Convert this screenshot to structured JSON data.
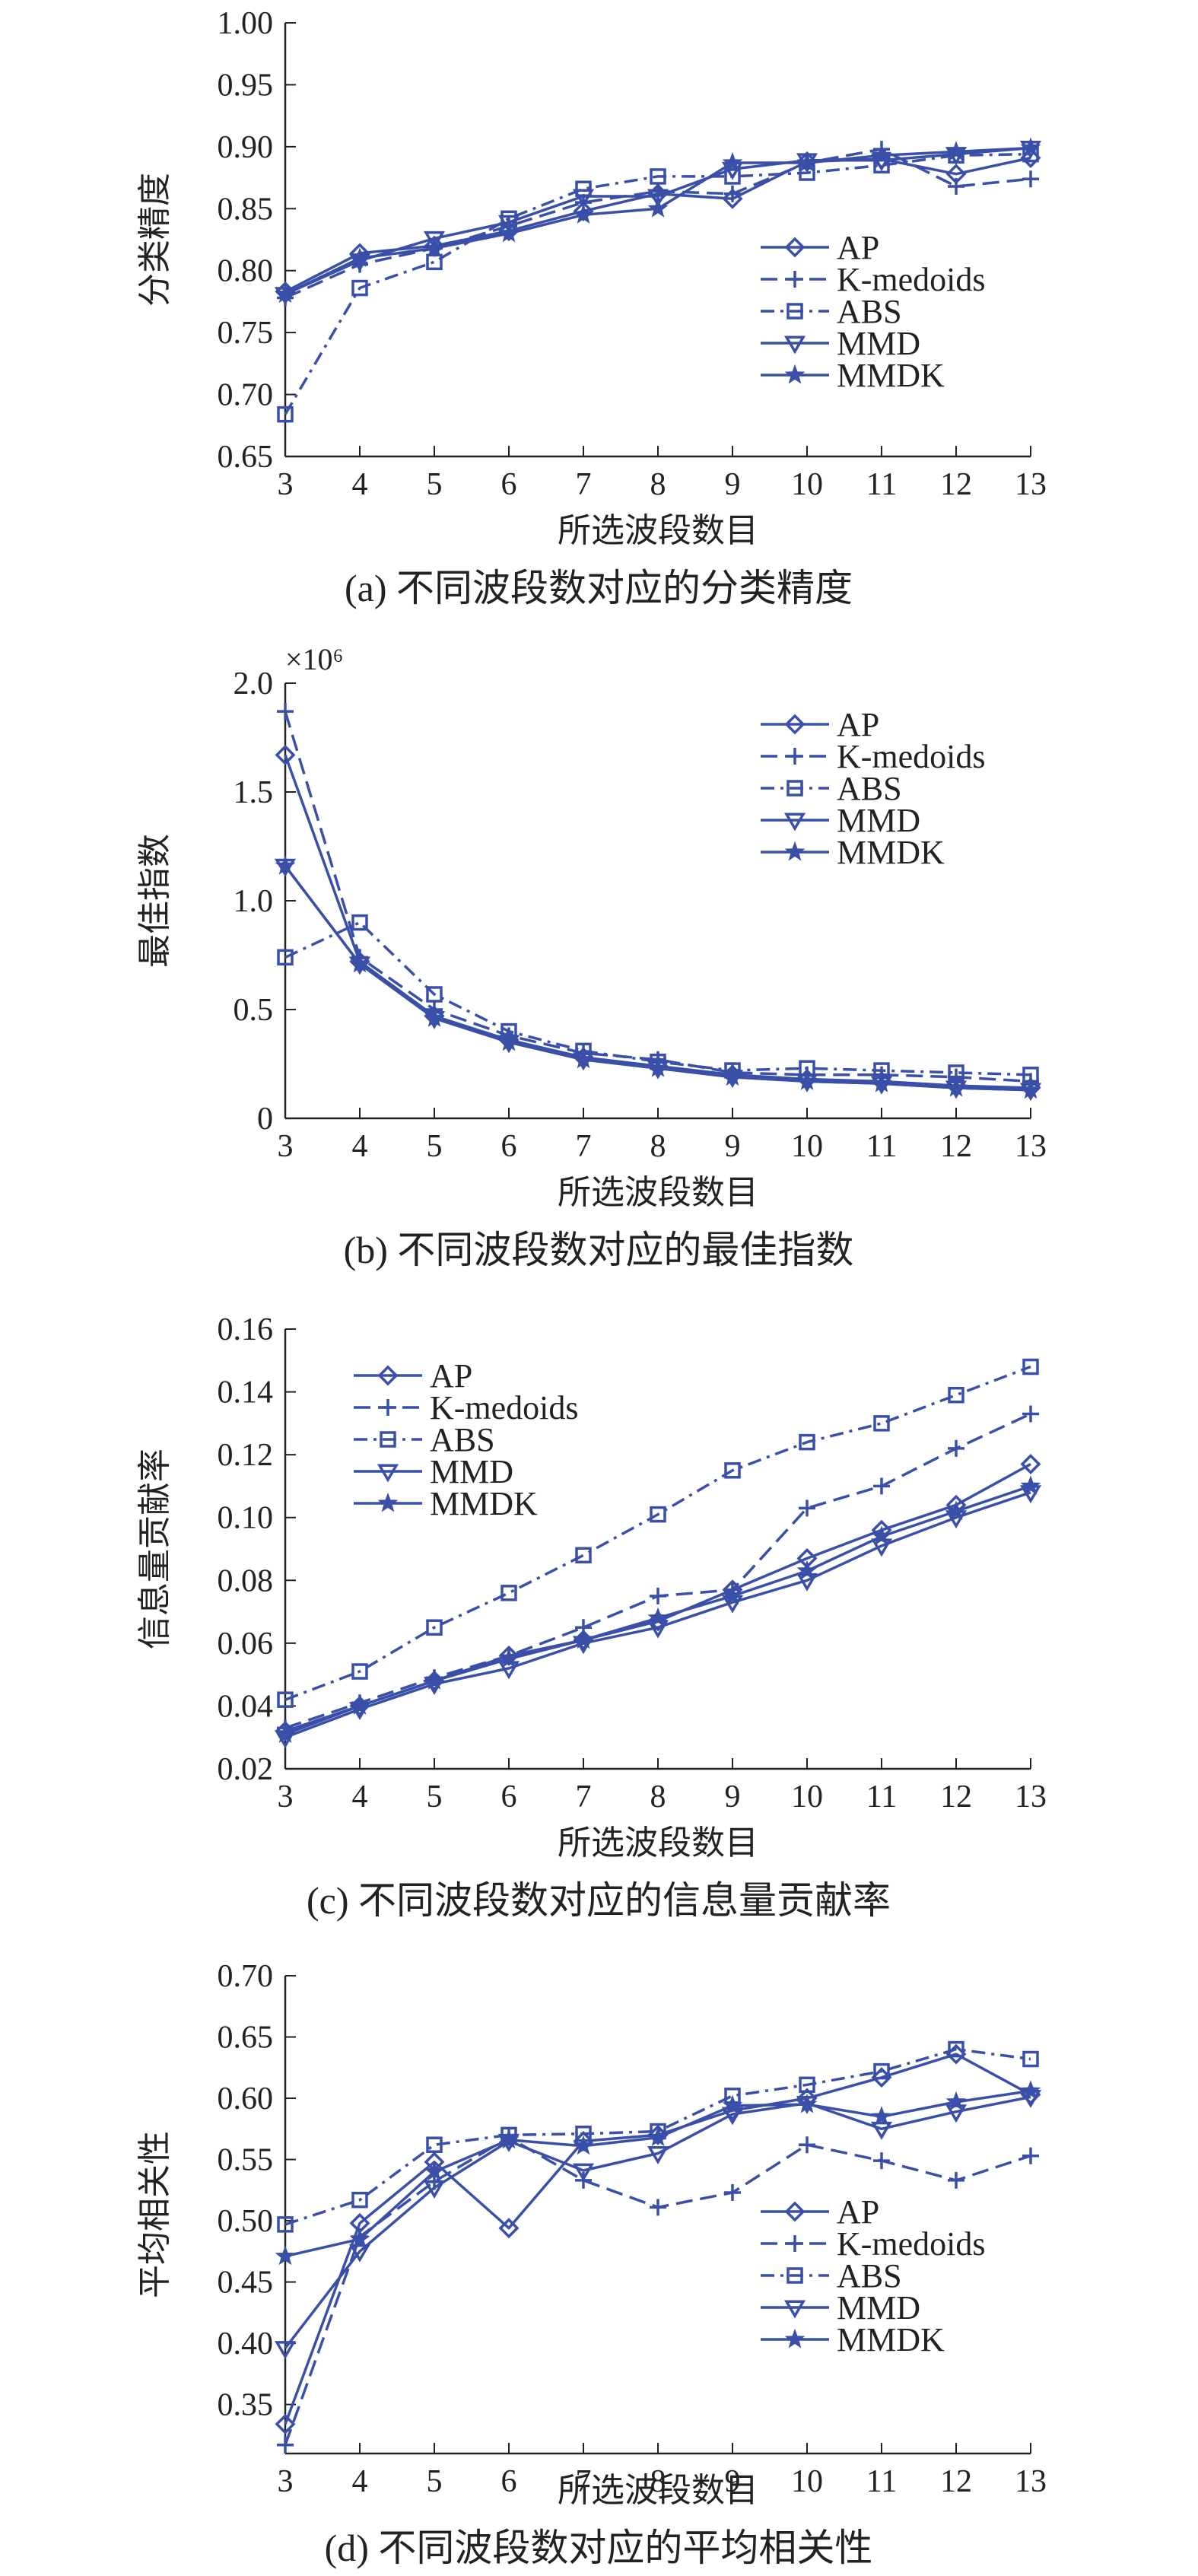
{
  "chart_data": [
    {
      "type": "line",
      "caption": "(a) 不同波段数对应的分类精度",
      "xlabel": "所选波段数目",
      "ylabel": "分类精度",
      "x": [
        3,
        4,
        5,
        6,
        7,
        8,
        9,
        10,
        11,
        12,
        13
      ],
      "xlim": [
        3,
        13
      ],
      "ylim": [
        0.65,
        1.0
      ],
      "yticks": [
        "0.65",
        "0.70",
        "0.75",
        "0.80",
        "0.85",
        "0.90",
        "0.95",
        "1.00"
      ],
      "legend_position": "center-right",
      "series": [
        {
          "name": "AP",
          "values": [
            0.783,
            0.814,
            0.82,
            0.832,
            0.848,
            0.862,
            0.858,
            0.888,
            0.89,
            0.878,
            0.891
          ]
        },
        {
          "name": "K-medoids",
          "values": [
            0.778,
            0.805,
            0.818,
            0.836,
            0.855,
            0.864,
            0.862,
            0.887,
            0.898,
            0.868,
            0.874
          ]
        },
        {
          "name": "ABS",
          "values": [
            0.684,
            0.786,
            0.807,
            0.842,
            0.866,
            0.876,
            0.876,
            0.879,
            0.885,
            0.893,
            0.894
          ]
        },
        {
          "name": "MMD",
          "values": [
            0.781,
            0.808,
            0.826,
            0.839,
            0.86,
            0.86,
            0.882,
            0.889,
            0.889,
            0.894,
            0.899
          ]
        },
        {
          "name": "MMDK",
          "values": [
            0.781,
            0.81,
            0.818,
            0.83,
            0.845,
            0.85,
            0.887,
            0.887,
            0.893,
            0.896,
            0.899
          ]
        }
      ]
    },
    {
      "type": "line",
      "caption": "(b) 不同波段数对应的最佳指数",
      "xlabel": "所选波段数目",
      "ylabel": "最佳指数",
      "scale_label": "×10⁶",
      "x": [
        3,
        4,
        5,
        6,
        7,
        8,
        9,
        10,
        11,
        12,
        13
      ],
      "xlim": [
        3,
        13
      ],
      "ylim": [
        0,
        2.0
      ],
      "yticks": [
        "0",
        "0.5",
        "1.0",
        "1.5",
        "2.0"
      ],
      "legend_position": "top-right",
      "series": [
        {
          "name": "AP",
          "values": [
            1.67,
            0.72,
            0.47,
            0.36,
            0.28,
            0.24,
            0.2,
            0.18,
            0.17,
            0.15,
            0.14
          ]
        },
        {
          "name": "K-medoids",
          "values": [
            1.87,
            0.74,
            0.5,
            0.38,
            0.3,
            0.27,
            0.21,
            0.2,
            0.2,
            0.19,
            0.17
          ]
        },
        {
          "name": "ABS",
          "values": [
            0.74,
            0.9,
            0.57,
            0.4,
            0.31,
            0.26,
            0.22,
            0.23,
            0.22,
            0.21,
            0.2
          ]
        },
        {
          "name": "MMD",
          "values": [
            1.16,
            0.71,
            0.46,
            0.35,
            0.27,
            0.23,
            0.19,
            0.17,
            0.16,
            0.14,
            0.13
          ]
        },
        {
          "name": "MMDK",
          "values": [
            1.16,
            0.71,
            0.46,
            0.35,
            0.27,
            0.23,
            0.19,
            0.17,
            0.16,
            0.14,
            0.13
          ]
        }
      ]
    },
    {
      "type": "line",
      "caption": "(c) 不同波段数对应的信息量贡献率",
      "xlabel": "所选波段数目",
      "ylabel": "信息量贡献率",
      "x": [
        3,
        4,
        5,
        6,
        7,
        8,
        9,
        10,
        11,
        12,
        13
      ],
      "xlim": [
        3,
        13
      ],
      "ylim": [
        0.02,
        0.16
      ],
      "yticks": [
        "0.02",
        "0.04",
        "0.06",
        "0.08",
        "0.10",
        "0.12",
        "0.14",
        "0.16"
      ],
      "legend_position": "top-left",
      "series": [
        {
          "name": "AP",
          "values": [
            0.032,
            0.04,
            0.048,
            0.056,
            0.061,
            0.067,
            0.077,
            0.087,
            0.096,
            0.104,
            0.117
          ]
        },
        {
          "name": "K-medoids",
          "values": [
            0.033,
            0.041,
            0.049,
            0.056,
            0.065,
            0.075,
            0.077,
            0.103,
            0.11,
            0.122,
            0.133
          ]
        },
        {
          "name": "ABS",
          "values": [
            0.042,
            0.051,
            0.065,
            0.076,
            0.088,
            0.101,
            0.115,
            0.124,
            0.13,
            0.139,
            0.148
          ]
        },
        {
          "name": "MMD",
          "values": [
            0.03,
            0.039,
            0.047,
            0.052,
            0.06,
            0.065,
            0.073,
            0.08,
            0.091,
            0.1,
            0.108
          ]
        },
        {
          "name": "MMDK",
          "values": [
            0.031,
            0.04,
            0.048,
            0.055,
            0.061,
            0.068,
            0.075,
            0.083,
            0.094,
            0.102,
            0.11
          ]
        }
      ]
    },
    {
      "type": "line",
      "caption": "(d) 不同波段数对应的平均相关性",
      "xlabel": "所选波段数目",
      "ylabel": "平均相关性",
      "x": [
        3,
        4,
        5,
        6,
        7,
        8,
        9,
        10,
        11,
        12,
        13
      ],
      "xlim": [
        3,
        13
      ],
      "ylim": [
        0.31,
        0.7
      ],
      "yticks": [
        "0.35",
        "0.40",
        "0.45",
        "0.50",
        "0.55",
        "0.60",
        "0.65",
        "0.70"
      ],
      "legend_position": "bottom-right",
      "series": [
        {
          "name": "AP",
          "values": [
            0.334,
            0.498,
            0.548,
            0.494,
            0.565,
            0.57,
            0.59,
            0.6,
            0.617,
            0.636,
            0.603
          ]
        },
        {
          "name": "K-medoids",
          "values": [
            0.317,
            0.487,
            0.532,
            0.568,
            0.533,
            0.511,
            0.523,
            0.562,
            0.549,
            0.533,
            0.553
          ]
        },
        {
          "name": "ABS",
          "values": [
            0.497,
            0.517,
            0.562,
            0.57,
            0.571,
            0.573,
            0.602,
            0.611,
            0.622,
            0.64,
            0.632
          ]
        },
        {
          "name": "MMD",
          "values": [
            0.396,
            0.475,
            0.527,
            0.565,
            0.541,
            0.555,
            0.587,
            0.596,
            0.575,
            0.589,
            0.601
          ]
        },
        {
          "name": "MMDK",
          "values": [
            0.471,
            0.485,
            0.54,
            0.566,
            0.561,
            0.568,
            0.594,
            0.595,
            0.585,
            0.597,
            0.606
          ]
        }
      ]
    }
  ],
  "style": {
    "line_color": "#3a4fa8",
    "series_styles": [
      "solid-diamond",
      "dashed-plus",
      "dashdot-square",
      "solid-triangle",
      "solid-star"
    ]
  }
}
